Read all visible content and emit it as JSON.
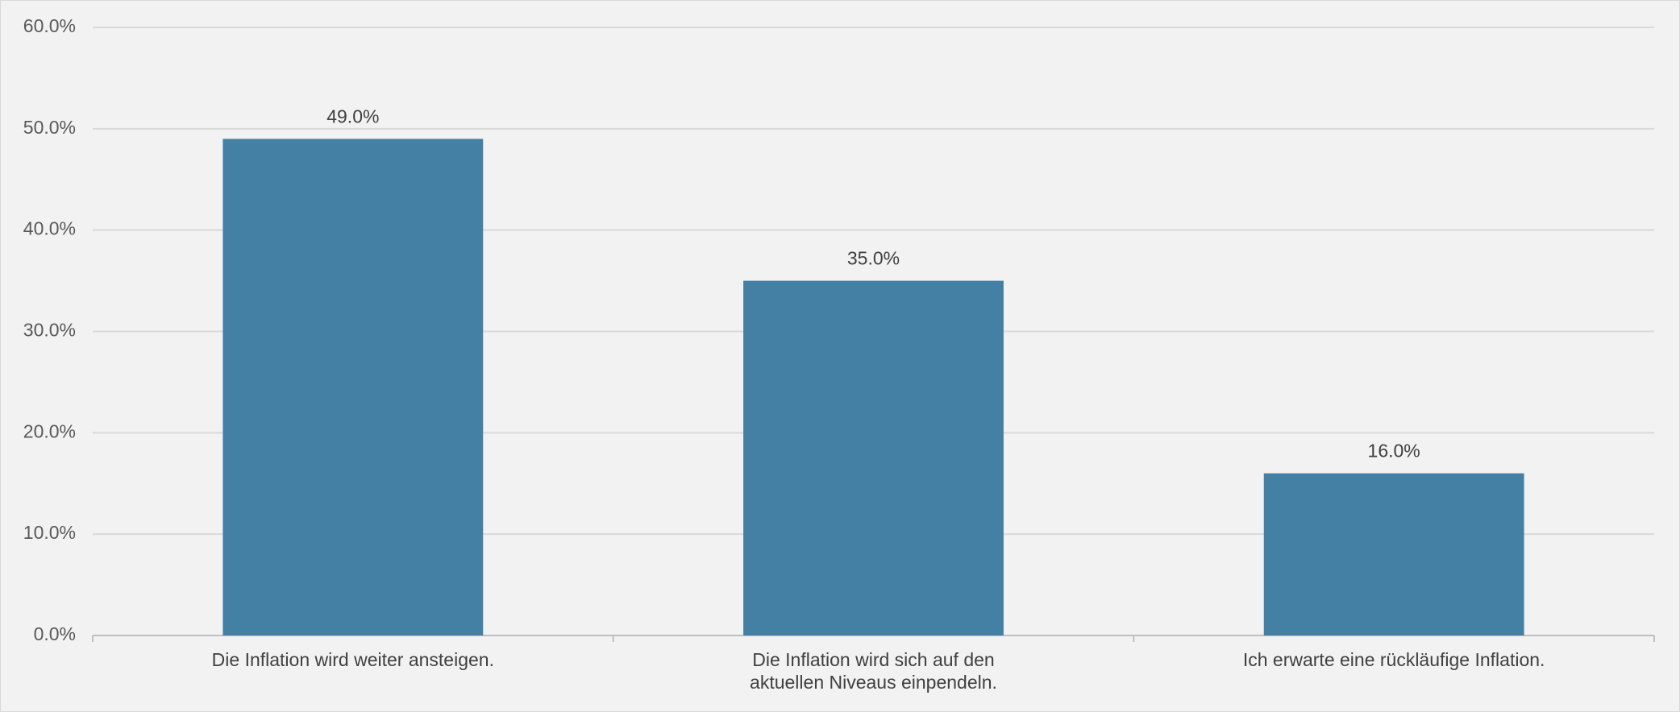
{
  "chart_data": {
    "type": "bar",
    "categories": [
      "Die Inflation wird weiter ansteigen.",
      "Die Inflation wird sich auf den aktuellen Niveaus einpendeln.",
      "Ich erwarte eine rückläufige Inflation."
    ],
    "values": [
      49,
      35,
      16
    ],
    "value_labels": [
      "49.0%",
      "35.0%",
      "16.0%"
    ],
    "color": "#4480a4",
    "ylim": [
      0,
      60
    ],
    "yticks": [
      {
        "value": 0,
        "label": "0.0%"
      },
      {
        "value": 10,
        "label": "10.0%"
      },
      {
        "value": 20,
        "label": "20.0%"
      },
      {
        "value": 30,
        "label": "30.0%"
      },
      {
        "value": 40,
        "label": "40.0%"
      },
      {
        "value": 50,
        "label": "50.0%"
      },
      {
        "value": 60,
        "label": "60.0%"
      }
    ],
    "grid": true
  }
}
